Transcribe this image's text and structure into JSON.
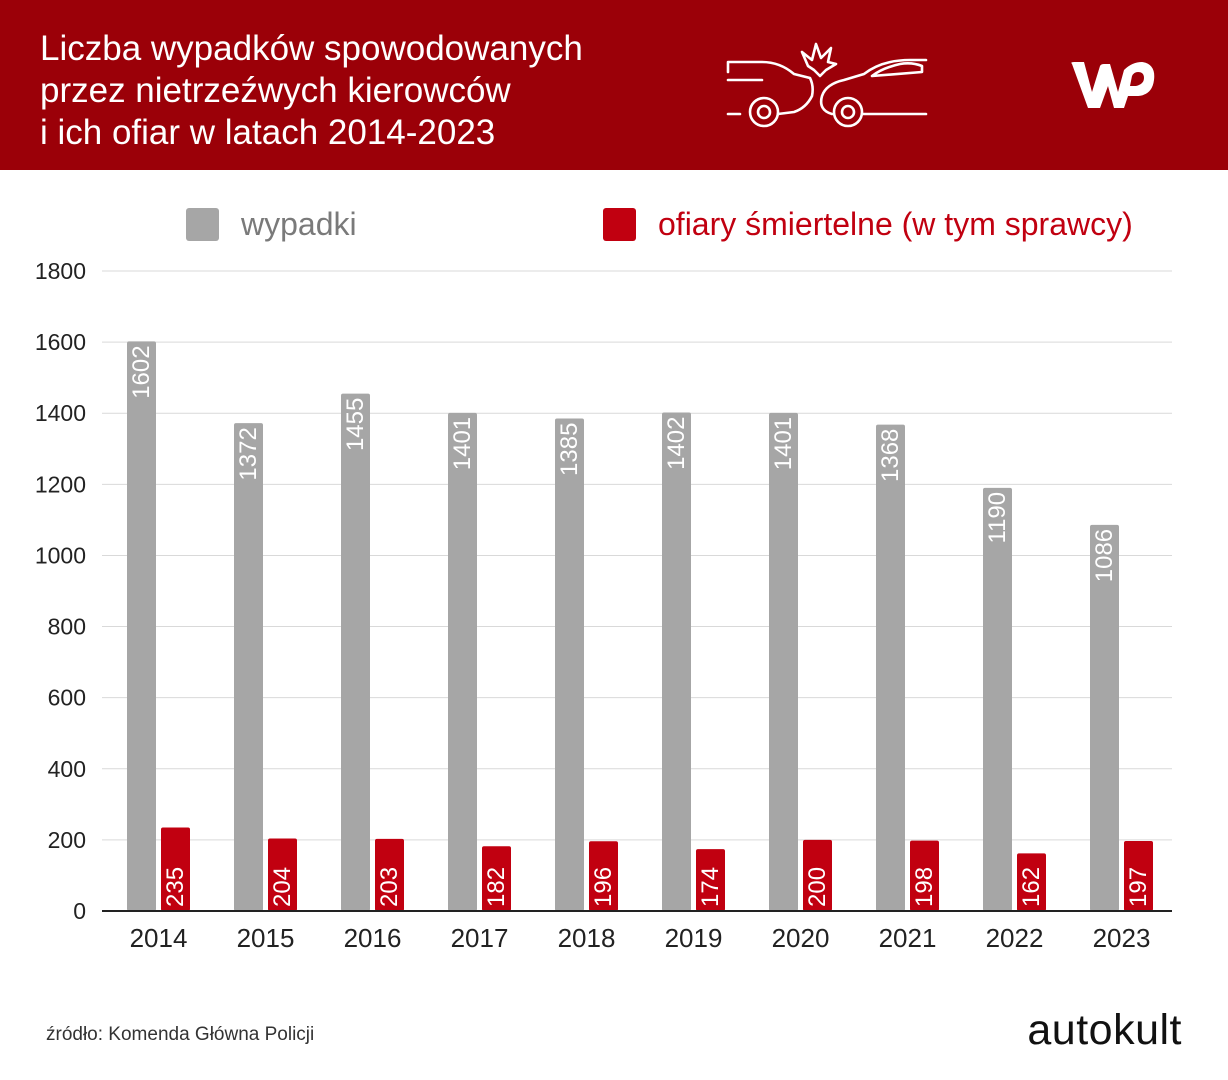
{
  "header": {
    "title_lines": [
      "Liczba wypadków spowodowanych",
      "przez nietrzeźwych kierowców",
      "i ich ofiar w latach 2014-2023"
    ],
    "icon": "car-crash-icon",
    "logo": "WP",
    "background": "#9b0008"
  },
  "colors": {
    "accidents": "#a6a6a6",
    "fatalities": "#c10010",
    "bar_label": "#ffffff",
    "grid": "#d9d9d9",
    "axis": "#222222"
  },
  "chart_data": {
    "type": "bar",
    "categories": [
      "2014",
      "2015",
      "2016",
      "2017",
      "2018",
      "2019",
      "2020",
      "2021",
      "2022",
      "2023"
    ],
    "series": [
      {
        "name": "wypadki",
        "values": [
          1602,
          1372,
          1455,
          1401,
          1385,
          1402,
          1401,
          1368,
          1190,
          1086
        ]
      },
      {
        "name": "ofiary śmiertelne (w tym sprawcy)",
        "values": [
          235,
          204,
          203,
          182,
          196,
          174,
          200,
          198,
          162,
          197
        ]
      }
    ],
    "ylim": [
      0,
      1800
    ],
    "yticks": [
      0,
      200,
      400,
      600,
      800,
      1000,
      1200,
      1400,
      1600,
      1800
    ],
    "grid": true,
    "legend_position": "top",
    "data_labels": "inside-vertical"
  },
  "footer": {
    "source": "źródło: Komenda Główna Policji",
    "brand": "autokult"
  }
}
